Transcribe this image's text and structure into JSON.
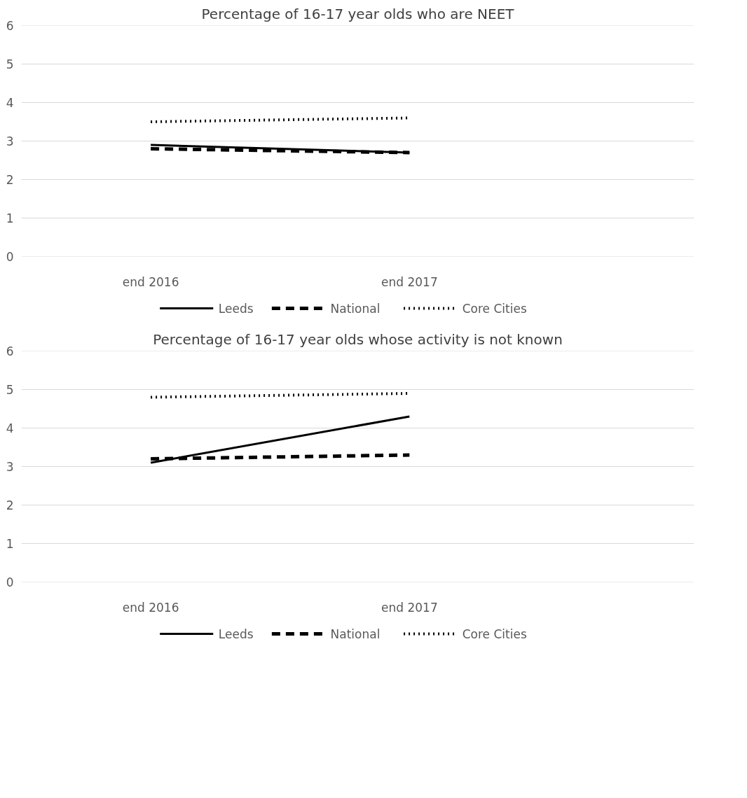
{
  "chart_data": [
    {
      "type": "line",
      "title": "Percentage of 16-17 year olds who are NEET",
      "categories": [
        "end 2016",
        "end 2017"
      ],
      "ylim": [
        0,
        6
      ],
      "yticks": [
        0,
        1,
        2,
        3,
        4,
        5,
        6
      ],
      "grid": "y",
      "legend": "bottom",
      "series": [
        {
          "name": "Leeds",
          "color": "#000000",
          "line_style": "solid",
          "values": [
            2.9,
            2.7
          ]
        },
        {
          "name": "National",
          "color": "#000000",
          "line_style": "dashed",
          "values": [
            2.8,
            2.7
          ]
        },
        {
          "name": "Core Cities",
          "color": "#000000",
          "line_style": "dotted",
          "values": [
            3.5,
            3.6
          ]
        }
      ]
    },
    {
      "type": "line",
      "title": "Percentage of 16-17 year olds whose activity is not known",
      "categories": [
        "end 2016",
        "end 2017"
      ],
      "ylim": [
        0,
        6
      ],
      "yticks": [
        0,
        1,
        2,
        3,
        4,
        5,
        6
      ],
      "grid": "y",
      "legend": "bottom",
      "series": [
        {
          "name": "Leeds",
          "color": "#000000",
          "line_style": "solid",
          "values": [
            3.1,
            4.3
          ]
        },
        {
          "name": "National",
          "color": "#000000",
          "line_style": "dashed",
          "values": [
            3.2,
            3.3
          ]
        },
        {
          "name": "Core Cities",
          "color": "#000000",
          "line_style": "dotted",
          "values": [
            4.8,
            4.9
          ]
        }
      ]
    }
  ]
}
